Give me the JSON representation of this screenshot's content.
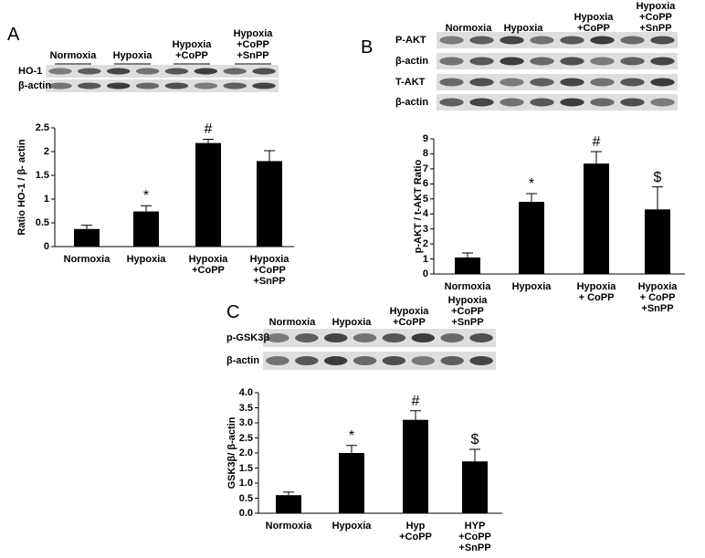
{
  "chart_data": [
    {
      "type": "bar",
      "panel": "A",
      "ylabel": "Ratio HO-1 / β- actin",
      "blot": {
        "lanes": [
          "Normoxia",
          "Hypoxia",
          "Hypoxia\n+CoPP",
          "Hypoxia\n+CoPP\n+SnPP"
        ],
        "rows": [
          "HO-1",
          "β-actin"
        ]
      },
      "categories": [
        "Normoxia",
        "Hypoxia",
        "Hypoxia\n+CoPP",
        "Hypoxia\n+CoPP\n+SnPP"
      ],
      "values": [
        0.37,
        0.74,
        2.18,
        1.8
      ],
      "errors": [
        0.08,
        0.12,
        0.08,
        0.22
      ],
      "annotations": [
        null,
        "*",
        "#",
        null
      ],
      "color": "#000000",
      "ylim": [
        0,
        2.5
      ],
      "yticks": [
        0,
        0.5,
        1,
        1.5,
        2,
        2.5
      ]
    },
    {
      "type": "bar",
      "panel": "B",
      "ylabel": "p-AKT / t-AKT Ratio",
      "blot": {
        "lanes": [
          "Normoxia",
          "Hypoxia",
          "Hypoxia\n+CoPP",
          "Hypoxia\n+CoPP\n+SnPP"
        ],
        "rows": [
          "P-AKT",
          "β-actin",
          "T-AKT",
          "β-actin"
        ]
      },
      "categories": [
        "Normoxia",
        "Hypoxia",
        "Hypoxia\n+ CoPP",
        "Hypoxia\n+ CoPP\n+SnPP"
      ],
      "values": [
        1.1,
        4.8,
        7.35,
        4.3
      ],
      "errors": [
        0.3,
        0.55,
        0.8,
        1.5
      ],
      "annotations": [
        null,
        "*",
        "#",
        "$"
      ],
      "color": "#000000",
      "ylim": [
        0,
        9
      ],
      "yticks": [
        0,
        1,
        2,
        3,
        4,
        5,
        6,
        7,
        8,
        9
      ]
    },
    {
      "type": "bar",
      "panel": "C",
      "ylabel": "GSK3β/ β-actin",
      "blot": {
        "lanes": [
          "Normoxia",
          "Hypoxia",
          "Hypoxia\n+CoPP",
          "Hypoxia\n+CoPP\n+SnPP"
        ],
        "rows": [
          "p-GSK3β",
          "β-actin"
        ]
      },
      "categories": [
        "Normoxia",
        "Hypoxia",
        "Hyp\n+CoPP",
        "HYP\n+CoPP\n+SnPP"
      ],
      "values": [
        0.6,
        2.0,
        3.1,
        1.72
      ],
      "errors": [
        0.1,
        0.25,
        0.3,
        0.4
      ],
      "annotations": [
        null,
        "*",
        "#",
        "$"
      ],
      "color": "#000000",
      "ylim": [
        0,
        4
      ],
      "yticks": [
        {
          "value": 0,
          "label": "0.0"
        },
        {
          "value": 0.5,
          "label": "0.5"
        },
        {
          "value": 1,
          "label": "1.0"
        },
        {
          "value": 1.5,
          "label": "1.5"
        },
        {
          "value": 2,
          "label": "2.0"
        },
        {
          "value": 2.5,
          "label": "2.5"
        },
        {
          "value": 3,
          "label": "3.0"
        },
        {
          "value": 3.5,
          "label": "3.5"
        },
        {
          "value": 4,
          "label": "4.0"
        }
      ]
    }
  ]
}
